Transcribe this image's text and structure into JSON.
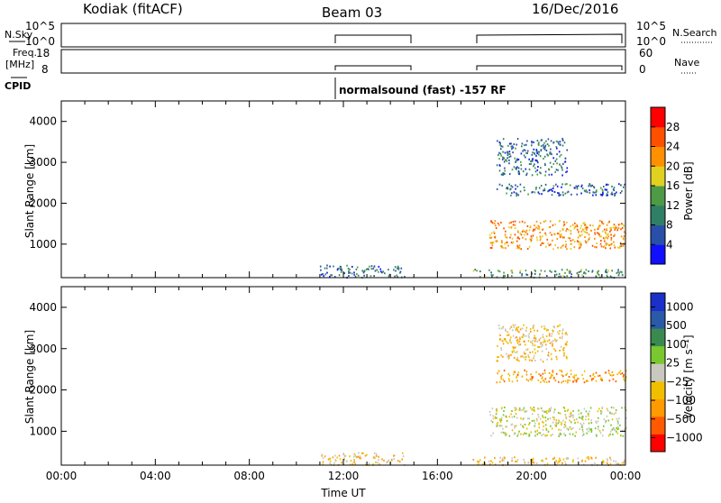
{
  "header": {
    "station": "Kodiak (fitACF)",
    "beam": "Beam 03",
    "date": "16/Dec/2016"
  },
  "sky_panel": {
    "left_label": "N.Sky",
    "left_ticks": [
      "10^5",
      "10^0"
    ],
    "right_ticks": [
      "10^5",
      "10^0"
    ],
    "right_label": "N.Search"
  },
  "freq_panel": {
    "left_label_1": "Freq.",
    "left_label_2": "[MHz]",
    "left_ticks": [
      "18",
      "8"
    ],
    "right_ticks": [
      "60",
      "0"
    ],
    "right_label": "Nave"
  },
  "cpid": {
    "label": "CPID",
    "text": "normalsound (fast) -157 RF"
  },
  "colors": {
    "power": [
      "#1010ff",
      "#2a4fa8",
      "#2f7f66",
      "#4d9a47",
      "#e0d020",
      "#ff9000",
      "#ff5000",
      "#ff0000"
    ],
    "velocity": [
      "#ff0000",
      "#ff5a00",
      "#ff9a00",
      "#f0c000",
      "#c8c8c0",
      "#7ac830",
      "#3a8a50",
      "#2a5aa8",
      "#1a30c8"
    ]
  },
  "chart_data": [
    {
      "type": "heatmap",
      "ylabel": "Slant Range [km]",
      "yticks": [
        "1000",
        "2000",
        "3000",
        "4000"
      ],
      "ylim": [
        180,
        4500
      ],
      "xlim": [
        0,
        24
      ],
      "colorbar": {
        "label": "Power [dB]",
        "ticks": [
          "4",
          "8",
          "12",
          "16",
          "20",
          "24",
          "28"
        ]
      },
      "regions": [
        {
          "t0": 11.0,
          "t1": 14.6,
          "r0": 200,
          "r1": 500,
          "level": 1.5
        },
        {
          "t0": 17.5,
          "t1": 24.0,
          "r0": 200,
          "r1": 400,
          "level": 2.5
        },
        {
          "t0": 18.2,
          "t1": 24.0,
          "r0": 900,
          "r1": 1600,
          "level": 5.0
        },
        {
          "t0": 18.5,
          "t1": 24.0,
          "r0": 2200,
          "r1": 2500,
          "level": 1.5
        },
        {
          "t0": 18.5,
          "t1": 21.5,
          "r0": 2700,
          "r1": 3600,
          "level": 1.5
        }
      ]
    },
    {
      "type": "heatmap",
      "ylabel": "Slant Range [km]",
      "yticks": [
        "1000",
        "2000",
        "3000",
        "4000"
      ],
      "ylim": [
        180,
        4500
      ],
      "xlim": [
        0,
        24
      ],
      "xlabel": "Time UT",
      "xticks": [
        "00:00",
        "04:00",
        "08:00",
        "12:00",
        "16:00",
        "20:00",
        "00:00"
      ],
      "colorbar": {
        "label": "Velocity [m s⁻¹]",
        "ticks": [
          "1000",
          "500",
          "100",
          "25",
          "−25",
          "−100",
          "−500",
          "−1000"
        ]
      },
      "regions": [
        {
          "t0": 11.0,
          "t1": 14.6,
          "r0": 200,
          "r1": 500,
          "level": 3
        },
        {
          "t0": 17.5,
          "t1": 24.0,
          "r0": 200,
          "r1": 400,
          "level": 3
        },
        {
          "t0": 18.2,
          "t1": 24.0,
          "r0": 900,
          "r1": 1600,
          "level": 4
        },
        {
          "t0": 18.5,
          "t1": 24.0,
          "r0": 2200,
          "r1": 2500,
          "level": 2
        },
        {
          "t0": 18.5,
          "t1": 21.5,
          "r0": 2700,
          "r1": 3600,
          "level": 3
        }
      ]
    }
  ]
}
